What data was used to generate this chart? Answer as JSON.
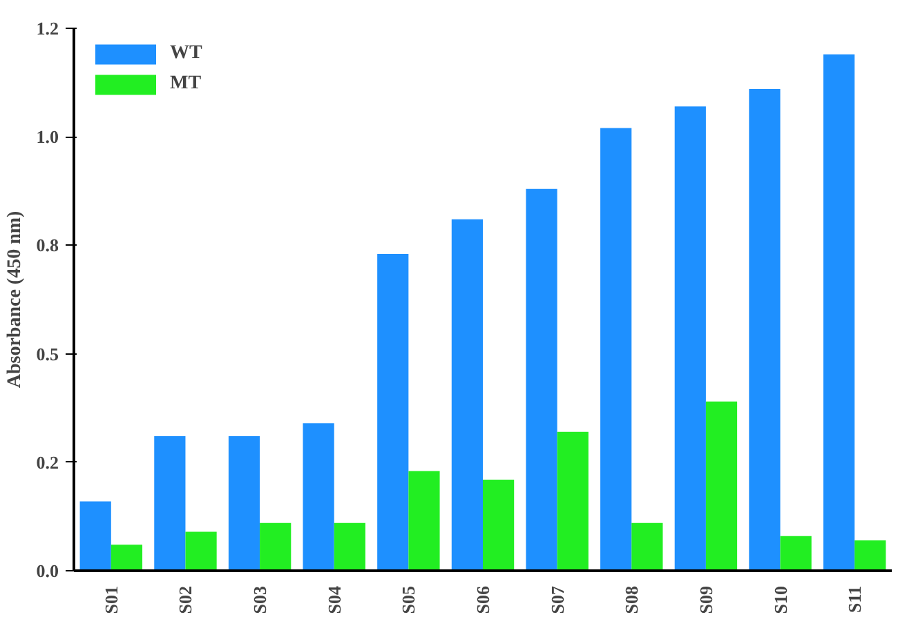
{
  "chart_data": {
    "type": "bar",
    "ylabel": "Absorbance (450 nm)",
    "categories": [
      "S01",
      "S02",
      "S03",
      "S04",
      "S05",
      "S06",
      "S07",
      "S08",
      "S09",
      "S10",
      "S11"
    ],
    "series": [
      {
        "name": "WT",
        "color": "#1e90ff",
        "values": [
          0.16,
          0.31,
          0.31,
          0.34,
          0.73,
          0.81,
          0.88,
          1.02,
          1.07,
          1.11,
          1.19
        ]
      },
      {
        "name": "MT",
        "color": "#22ee22",
        "values": [
          0.06,
          0.09,
          0.11,
          0.11,
          0.23,
          0.21,
          0.32,
          0.11,
          0.39,
          0.08,
          0.07
        ]
      }
    ],
    "ylim": [
      0,
      1.25
    ],
    "yticks": [
      {
        "value": 0,
        "label": "0.0"
      },
      {
        "value": 0.25,
        "label": "0.2"
      },
      {
        "value": 0.5,
        "label": "0.5"
      },
      {
        "value": 0.75,
        "label": "0.8"
      },
      {
        "value": 1.0,
        "label": "1.0"
      },
      {
        "value": 1.25,
        "label": "1.2"
      }
    ],
    "grid": false,
    "legend": "top left"
  }
}
